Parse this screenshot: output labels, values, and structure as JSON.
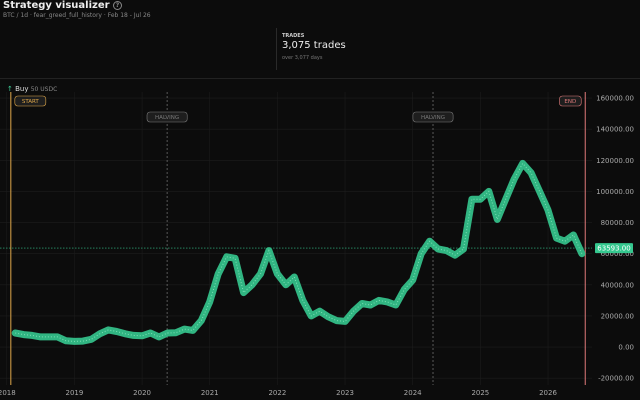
{
  "header": {
    "title": "Strategy visualizer",
    "subtitle": "BTC / 1d · fear_greed_full_history · Feb 18 - Jul 26"
  },
  "stats": {
    "label": "TRADES",
    "value": "3,075 trades",
    "note": "over 3,077 days"
  },
  "legend": {
    "label": "Buy",
    "amount": "50 USDC",
    "color": "#3fd39a"
  },
  "chart_data": {
    "type": "line",
    "color": "#35c88f",
    "x": [
      2018.125,
      2018.25,
      2018.375,
      2018.5,
      2018.625,
      2018.75,
      2018.875,
      2019.0,
      2019.125,
      2019.25,
      2019.375,
      2019.5,
      2019.625,
      2019.75,
      2019.875,
      2020.0,
      2020.125,
      2020.25,
      2020.375,
      2020.5,
      2020.625,
      2020.75,
      2020.875,
      2021.0,
      2021.125,
      2021.25,
      2021.375,
      2021.5,
      2021.625,
      2021.75,
      2021.875,
      2022.0,
      2022.125,
      2022.25,
      2022.375,
      2022.5,
      2022.625,
      2022.75,
      2022.875,
      2023.0,
      2023.125,
      2023.25,
      2023.375,
      2023.5,
      2023.625,
      2023.75,
      2023.875,
      2024.0,
      2024.125,
      2024.25,
      2024.375,
      2024.5,
      2024.625,
      2024.75,
      2024.875,
      2025.0,
      2025.125,
      2025.25,
      2025.375,
      2025.5,
      2025.625,
      2025.75,
      2025.875,
      2026.0,
      2026.125,
      2026.25,
      2026.375,
      2026.5
    ],
    "values": [
      9000,
      8000,
      7500,
      6500,
      6500,
      6500,
      4000,
      3600,
      3800,
      5000,
      8500,
      11000,
      10000,
      8500,
      7500,
      7200,
      9000,
      6500,
      9000,
      9200,
      11500,
      10700,
      17000,
      29000,
      47000,
      58000,
      57000,
      35000,
      40000,
      47000,
      62000,
      47000,
      40000,
      45000,
      30000,
      20000,
      23000,
      19500,
      17000,
      16500,
      23000,
      28000,
      27000,
      30000,
      29000,
      27000,
      37000,
      43000,
      60000,
      68000,
      63000,
      62000,
      59000,
      63000,
      95000,
      95000,
      100000,
      82000,
      95000,
      108000,
      118000,
      112000,
      100000,
      88000,
      70000,
      68000,
      72000,
      60000
    ],
    "xlim": [
      2017.9,
      2026.65
    ],
    "ylim": [
      -24400,
      163900
    ],
    "xticks": [
      2018,
      2019,
      2020,
      2021,
      2022,
      2023,
      2024,
      2025,
      2026
    ],
    "yticks": [
      {
        "value": -20000,
        "label": "-20000.00"
      },
      {
        "value": 0,
        "label": "0.00"
      },
      {
        "value": 20000,
        "label": "20000.00"
      },
      {
        "value": 40000,
        "label": "40000.00"
      },
      {
        "value": 60000,
        "label": "60000.00"
      },
      {
        "value": 80000,
        "label": "80000.00"
      },
      {
        "value": 100000,
        "label": "100000.00"
      },
      {
        "value": 120000,
        "label": "120000.00"
      },
      {
        "value": 140000,
        "label": "140000.00"
      },
      {
        "value": 160000,
        "label": "160000.00"
      }
    ],
    "grid": true,
    "last_price": {
      "value": 63593,
      "label": "63593.00"
    },
    "markers": [
      {
        "label": "START",
        "x": 2018.06,
        "color": "#e0a84a",
        "dashed": false
      },
      {
        "label": "HALVING",
        "x": 2020.37,
        "color": "#7a7a7a",
        "dashed": true
      },
      {
        "label": "HALVING",
        "x": 2024.3,
        "color": "#7a7a7a",
        "dashed": true
      },
      {
        "label": "END",
        "x": 2026.55,
        "color": "#e07a7a",
        "dashed": false
      }
    ]
  }
}
